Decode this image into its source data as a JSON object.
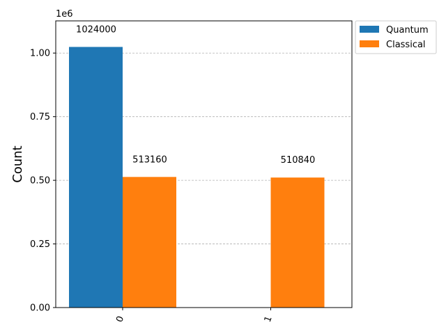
{
  "chart_data": {
    "type": "bar",
    "categories": [
      "0",
      "1"
    ],
    "series": [
      {
        "name": "Quantum",
        "values": [
          1024000,
          null
        ],
        "color": "#1f77b4",
        "value_labels": [
          "1024000",
          ""
        ]
      },
      {
        "name": "Classical",
        "values": [
          513160,
          510840
        ],
        "color": "#ff7f0e",
        "value_labels": [
          "513160",
          "510840"
        ]
      }
    ],
    "ylabel": "Count",
    "y_offset_text": "1e6",
    "ylim": [
      0,
      1126400
    ],
    "yticks": [
      0,
      250000,
      500000,
      750000,
      1000000
    ],
    "ytick_labels": [
      "0.00",
      "0.25",
      "0.50",
      "0.75",
      "1.00"
    ],
    "grid": "y-dashed",
    "legend_placement": "outside-top-right"
  }
}
